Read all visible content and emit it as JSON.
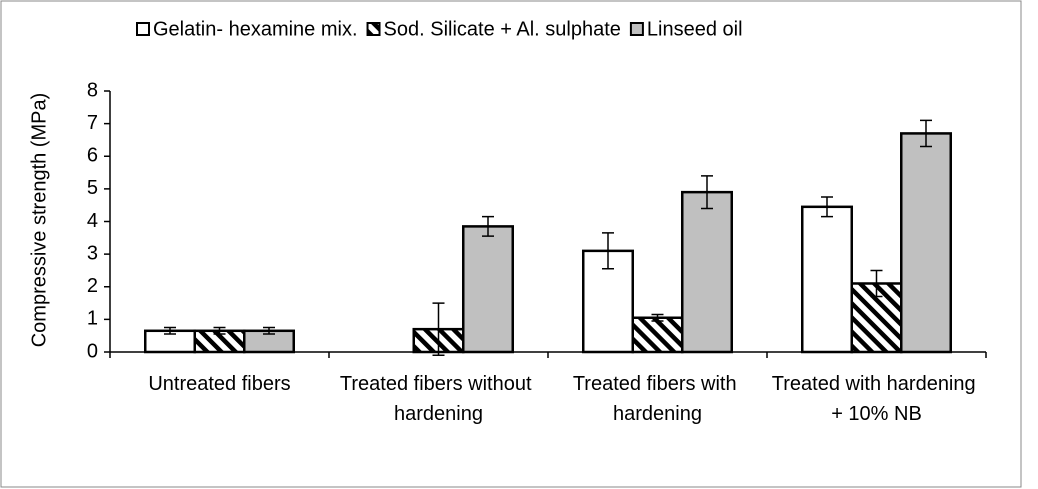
{
  "chart_data": {
    "type": "bar",
    "y_label": "Compressive strength (MPa)",
    "categories": [
      "Untreated fibers",
      "Treated fibers without hardening",
      "Treated fibers with hardening",
      "Treated with hardening + 10% NB"
    ],
    "series": [
      {
        "name": "Gelatin- hexamine mix.",
        "color": "#ffffff",
        "pattern": "solid",
        "values": [
          0.65,
          null,
          3.1,
          4.45
        ],
        "errors": [
          0.1,
          null,
          0.55,
          0.3
        ]
      },
      {
        "name": "Sod. Silicate + Al. sulphate",
        "color": "#ffffff",
        "pattern": "hatch",
        "values": [
          0.65,
          0.7,
          1.05,
          2.1
        ],
        "errors": [
          0.1,
          0.8,
          0.1,
          0.4
        ]
      },
      {
        "name": "Linseed oil",
        "color": "#c0c0c0",
        "pattern": "solid",
        "values": [
          0.65,
          3.85,
          4.9,
          6.7
        ],
        "errors": [
          0.1,
          0.3,
          0.5,
          0.4
        ]
      }
    ],
    "ylim": [
      0,
      8
    ],
    "yticks": [
      0,
      1,
      2,
      3,
      4,
      5,
      6,
      7,
      8
    ],
    "grid": false,
    "legend": "top"
  }
}
